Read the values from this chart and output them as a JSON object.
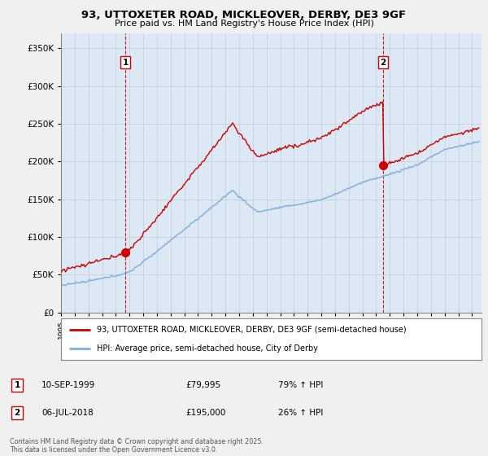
{
  "title1": "93, UTTOXETER ROAD, MICKLEOVER, DERBY, DE3 9GF",
  "title2": "Price paid vs. HM Land Registry's House Price Index (HPI)",
  "legend_line1": "93, UTTOXETER ROAD, MICKLEOVER, DERBY, DE3 9GF (semi-detached house)",
  "legend_line2": "HPI: Average price, semi-detached house, City of Derby",
  "annotation1_label": "1",
  "annotation1_date": "10-SEP-1999",
  "annotation1_price": "£79,995",
  "annotation1_hpi": "79% ↑ HPI",
  "annotation2_label": "2",
  "annotation2_date": "06-JUL-2018",
  "annotation2_price": "£195,000",
  "annotation2_hpi": "26% ↑ HPI",
  "footer": "Contains HM Land Registry data © Crown copyright and database right 2025.\nThis data is licensed under the Open Government Licence v3.0.",
  "sale1_year": 1999.7,
  "sale1_price": 79995,
  "sale2_year": 2018.51,
  "sale2_price": 195000,
  "red_color": "#cc0000",
  "blue_color": "#7aade0",
  "vline_color": "#cc0000",
  "background_color": "#f0f0f0",
  "plot_background": "#dde8f5",
  "ylim": [
    0,
    370000
  ],
  "xlim_start": 1995,
  "xlim_end": 2025.7
}
